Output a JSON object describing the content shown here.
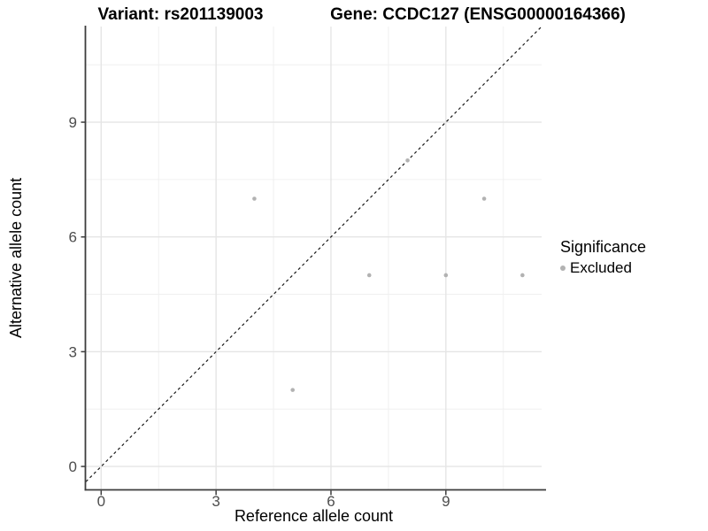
{
  "chart_data": {
    "type": "scatter",
    "title_left": "Variant: rs201139003",
    "title_right": "Gene: CCDC127 (ENSG00000164366)",
    "xlabel": "Reference allele count",
    "ylabel": "Alternative allele count",
    "xlim": [
      -0.4,
      11.5
    ],
    "ylim": [
      -0.6,
      11.5
    ],
    "x_ticks": [
      0,
      3,
      6,
      9
    ],
    "y_ticks": [
      0,
      3,
      6,
      9
    ],
    "x_minor_ticks": [
      1.5,
      4.5,
      7.5,
      10.5
    ],
    "y_minor_ticks": [
      1.5,
      4.5,
      7.5,
      10.5
    ],
    "grid": true,
    "points": [
      {
        "x": 4,
        "y": 7
      },
      {
        "x": 8,
        "y": 8
      },
      {
        "x": 10,
        "y": 7
      },
      {
        "x": 7,
        "y": 5
      },
      {
        "x": 9,
        "y": 5
      },
      {
        "x": 11,
        "y": 5
      },
      {
        "x": 5,
        "y": 2
      }
    ],
    "reference_line": {
      "type": "identity",
      "slope": 1,
      "intercept": 0,
      "style": "dashed",
      "color": "#1a1a1a"
    },
    "legend": {
      "position": "right",
      "title": "Significance",
      "entries": [
        {
          "label": "Excluded",
          "color": "#b2b2b2",
          "marker": "circle"
        }
      ]
    },
    "colors": {
      "point": "#b2b2b2",
      "grid_major": "#e5e5e5",
      "grid_minor": "#f0f0f0",
      "axis": "#3d3d3d",
      "tick_label": "#4d4d4d",
      "title": "#000000",
      "background": "#ffffff"
    }
  }
}
